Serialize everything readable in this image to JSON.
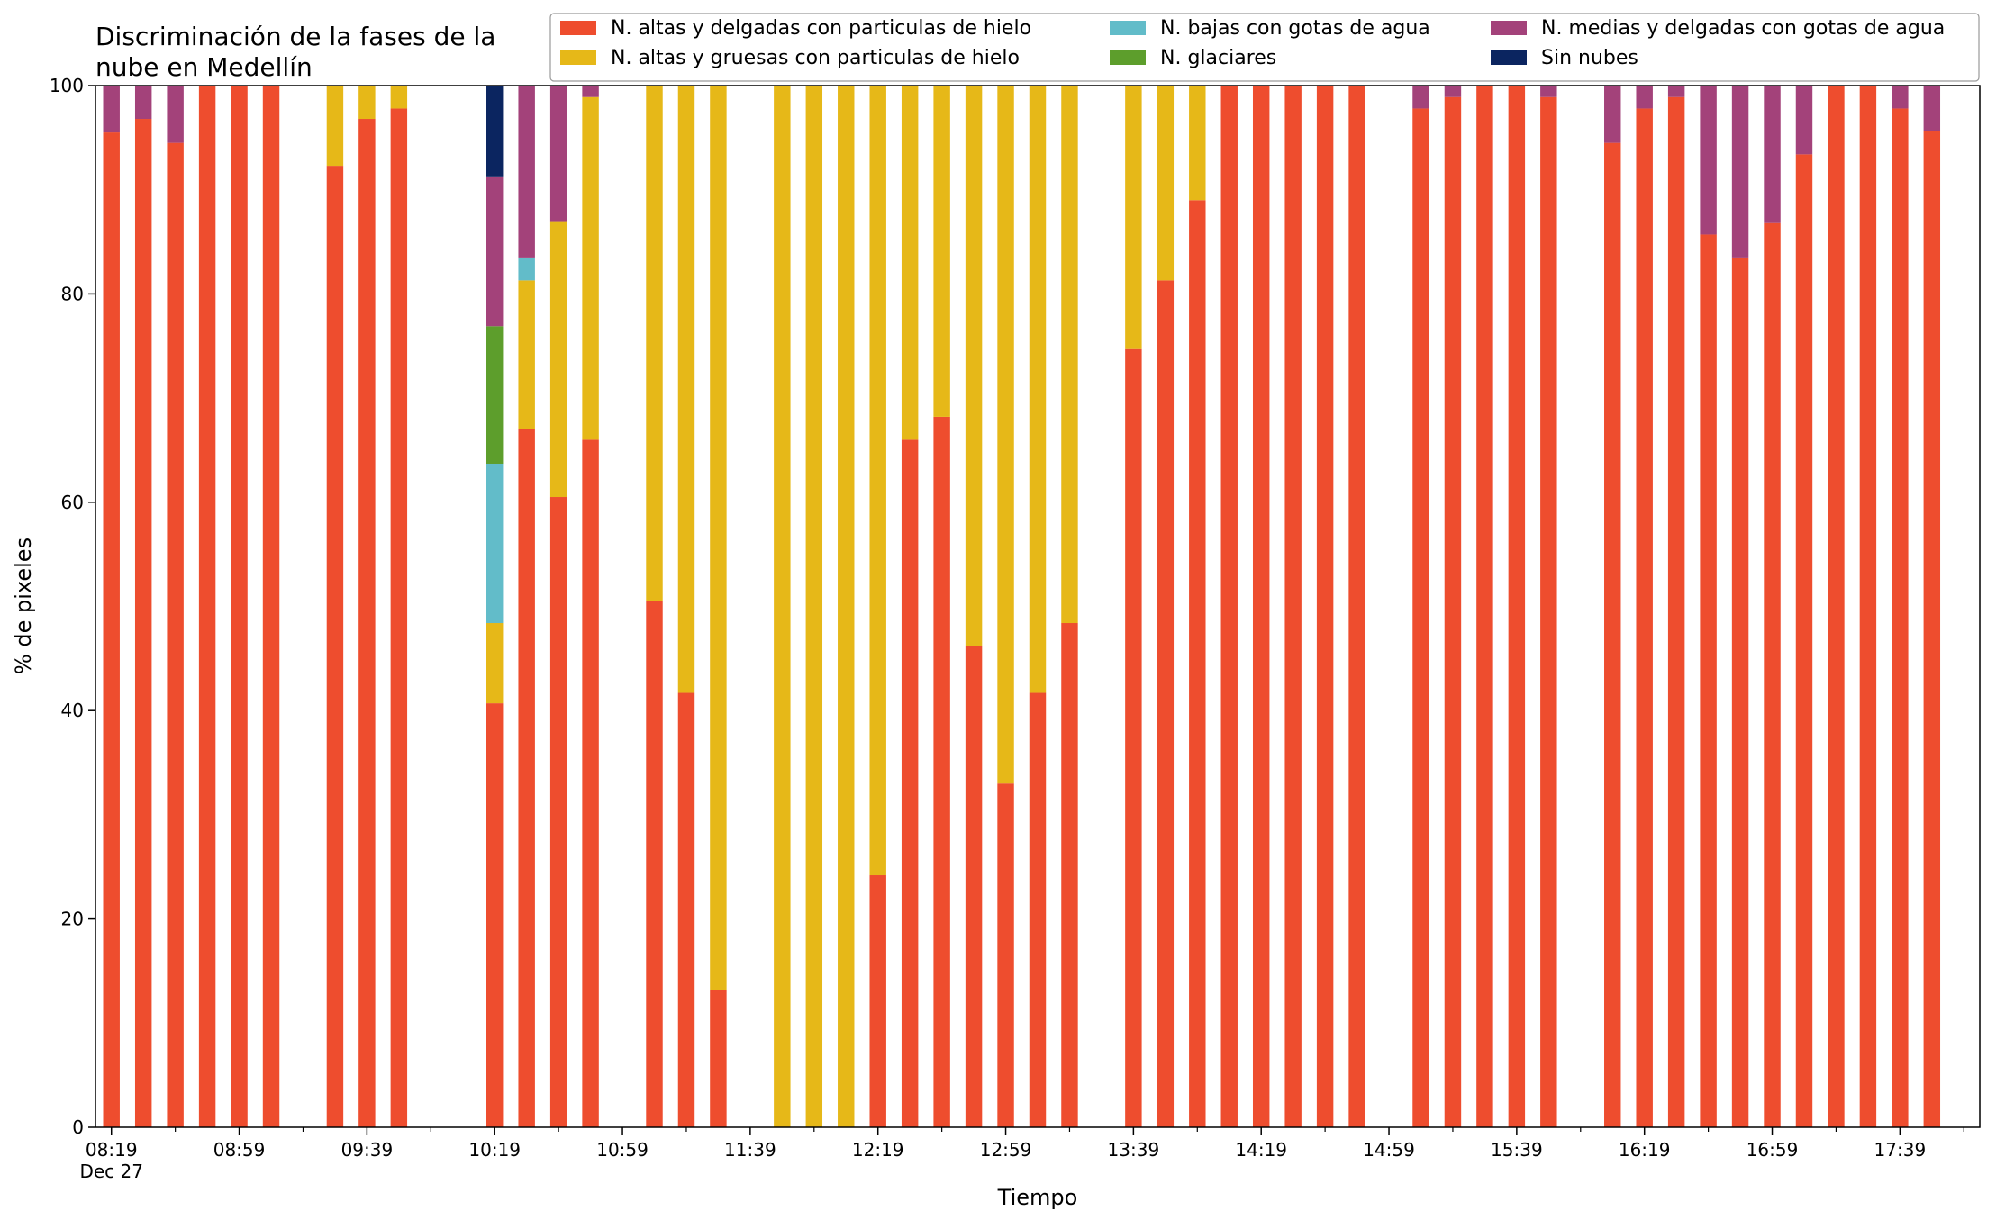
{
  "chart_data": {
    "type": "bar",
    "stacked": true,
    "title": "Discriminación de la fases de la nube en Medellín",
    "title_lines": [
      "Discriminación de la fases de la",
      "nube en Medellín"
    ],
    "xlabel": "Tiempo",
    "ylabel": "% de pixeles",
    "ylim": [
      0,
      100
    ],
    "yticks": [
      0,
      20,
      40,
      60,
      80,
      100
    ],
    "x_range": [
      "08:14",
      "18:04"
    ],
    "x_date_label": "Dec 27",
    "xticks_major": [
      "08:19",
      "08:59",
      "09:39",
      "10:19",
      "10:59",
      "11:39",
      "12:19",
      "12:59",
      "13:39",
      "14:19",
      "14:59",
      "15:39",
      "16:19",
      "16:59",
      "17:39"
    ],
    "xticks_minor": [
      "08:39",
      "09:19",
      "09:59",
      "10:39",
      "11:19",
      "11:59",
      "12:39",
      "13:19",
      "13:59",
      "14:39",
      "15:19",
      "15:59",
      "16:39",
      "17:19",
      "17:59"
    ],
    "legend_position": "top-right",
    "grid": false,
    "times": [
      "08:19",
      "08:29",
      "08:39",
      "08:49",
      "08:59",
      "09:09",
      "09:29",
      "09:39",
      "09:49",
      "10:19",
      "10:29",
      "10:39",
      "10:49",
      "11:09",
      "11:19",
      "11:29",
      "11:49",
      "11:59",
      "12:09",
      "12:19",
      "12:29",
      "12:39",
      "12:49",
      "12:59",
      "13:09",
      "13:19",
      "13:39",
      "13:49",
      "13:59",
      "14:09",
      "14:19",
      "14:29",
      "14:39",
      "14:49",
      "15:09",
      "15:19",
      "15:29",
      "15:39",
      "15:49",
      "16:09",
      "16:19",
      "16:29",
      "16:39",
      "16:49",
      "16:59",
      "17:09",
      "17:19",
      "17:29",
      "17:39",
      "17:49"
    ],
    "series": [
      {
        "name": "N. altas y delgadas con particulas de hielo",
        "color": "#ee4d2e",
        "values": [
          95.5,
          96.8,
          94.5,
          100,
          100,
          100,
          92.3,
          96.8,
          97.8,
          40.7,
          67.0,
          60.5,
          66.0,
          50.5,
          41.7,
          13.2,
          0,
          0,
          0,
          24.2,
          66.0,
          68.2,
          46.2,
          33.0,
          41.7,
          48.4,
          74.7,
          81.3,
          89.0,
          100,
          100,
          100,
          100,
          100,
          97.8,
          98.9,
          100,
          100,
          98.9,
          94.5,
          97.8,
          98.9,
          85.7,
          83.5,
          86.8,
          93.4,
          100,
          100,
          97.8,
          95.6
        ]
      },
      {
        "name": "N. altas y gruesas con particulas de hielo",
        "color": "#e6b818",
        "values": [
          0,
          0,
          0,
          0,
          0,
          0,
          7.7,
          3.2,
          2.2,
          7.7,
          14.3,
          26.4,
          32.9,
          49.5,
          58.3,
          86.8,
          100,
          100,
          100,
          75.8,
          34.0,
          31.8,
          53.8,
          67.0,
          58.3,
          51.6,
          25.3,
          18.7,
          11.0,
          0,
          0,
          0,
          0,
          0,
          0,
          0,
          0,
          0,
          0,
          0,
          0,
          0,
          0,
          0,
          0,
          0,
          0,
          0,
          0,
          0
        ]
      },
      {
        "name": "N. bajas con gotas de agua",
        "color": "#62bcc9",
        "values": [
          0,
          0,
          0,
          0,
          0,
          0,
          0,
          0,
          0,
          15.3,
          2.2,
          0,
          0,
          0,
          0,
          0,
          0,
          0,
          0,
          0,
          0,
          0,
          0,
          0,
          0,
          0,
          0,
          0,
          0,
          0,
          0,
          0,
          0,
          0,
          0,
          0,
          0,
          0,
          0,
          0,
          0,
          0,
          0,
          0,
          0,
          0,
          0,
          0,
          0,
          0
        ]
      },
      {
        "name": "N. glaciares",
        "color": "#5d9e2c",
        "values": [
          0,
          0,
          0,
          0,
          0,
          0,
          0,
          0,
          0,
          13.2,
          0,
          0,
          0,
          0,
          0,
          0,
          0,
          0,
          0,
          0,
          0,
          0,
          0,
          0,
          0,
          0,
          0,
          0,
          0,
          0,
          0,
          0,
          0,
          0,
          0,
          0,
          0,
          0,
          0,
          0,
          0,
          0,
          0,
          0,
          0,
          0,
          0,
          0,
          0,
          0
        ]
      },
      {
        "name": "N. medias y delgadas con gotas de agua",
        "color": "#a3427a",
        "values": [
          4.5,
          3.2,
          5.5,
          0,
          0,
          0,
          0,
          0,
          0,
          14.3,
          16.5,
          13.1,
          1.1,
          0,
          0,
          0,
          0,
          0,
          0,
          0,
          0,
          0,
          0,
          0,
          0,
          0,
          0,
          0,
          0,
          0,
          0,
          0,
          0,
          0,
          2.2,
          1.1,
          0,
          0,
          1.1,
          5.5,
          2.2,
          1.1,
          14.3,
          16.5,
          13.2,
          6.6,
          0,
          0,
          2.2,
          4.4
        ]
      },
      {
        "name": "Sin nubes",
        "color": "#0b2560",
        "values": [
          0,
          0,
          0,
          0,
          0,
          0,
          0,
          0,
          0,
          8.8,
          0,
          0,
          0,
          0,
          0,
          0,
          0,
          0,
          0,
          0,
          0,
          0,
          0,
          0,
          0,
          0,
          0,
          0,
          0,
          0,
          0,
          0,
          0,
          0,
          0,
          0,
          0,
          0,
          0,
          0,
          0,
          0,
          0,
          0,
          0,
          0,
          0,
          0,
          0,
          0
        ]
      }
    ],
    "legend_order": [
      0,
      1,
      2,
      3,
      4,
      5
    ],
    "bar_width_minutes": 5.2
  }
}
